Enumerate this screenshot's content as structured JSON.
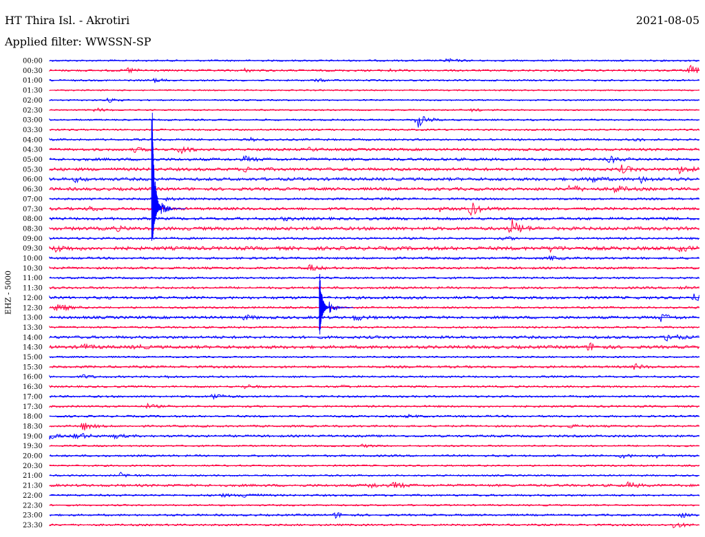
{
  "header": {
    "station": "HT Thira Isl. - Akrotiri",
    "date": "2021-08-05",
    "filter": "Applied filter: WWSSN-SP"
  },
  "chart_data": {
    "type": "line",
    "chart_kind": "helicorder",
    "ylabel": "EHZ - 5000",
    "series_colors": [
      "#0000ff",
      "#ff0040"
    ],
    "rows": [
      {
        "label": "00:00",
        "color": "#0000ff",
        "amp": 1.2,
        "events": [
          {
            "t": 0.61,
            "a": 3
          }
        ]
      },
      {
        "label": "00:30",
        "color": "#ff0040",
        "amp": 1.4,
        "events": [
          {
            "t": 0.12,
            "a": 4
          },
          {
            "t": 0.3,
            "a": 2
          },
          {
            "t": 0.52,
            "a": 2
          },
          {
            "t": 0.985,
            "a": 7
          }
        ]
      },
      {
        "label": "01:00",
        "color": "#0000ff",
        "amp": 1.2,
        "events": [
          {
            "t": 0.16,
            "a": 3
          },
          {
            "t": 0.41,
            "a": 2
          }
        ]
      },
      {
        "label": "01:30",
        "color": "#ff0040",
        "amp": 1.0,
        "events": []
      },
      {
        "label": "02:00",
        "color": "#0000ff",
        "amp": 1.0,
        "events": [
          {
            "t": 0.09,
            "a": 3
          }
        ]
      },
      {
        "label": "02:30",
        "color": "#ff0040",
        "amp": 1.0,
        "events": [
          {
            "t": 0.07,
            "a": 3
          },
          {
            "t": 0.65,
            "a": 2
          }
        ]
      },
      {
        "label": "03:00",
        "color": "#0000ff",
        "amp": 1.2,
        "events": [
          {
            "t": 0.565,
            "a": 12
          }
        ]
      },
      {
        "label": "03:30",
        "color": "#ff0040",
        "amp": 1.2,
        "events": []
      },
      {
        "label": "04:00",
        "color": "#0000ff",
        "amp": 1.4,
        "events": [
          {
            "t": 0.31,
            "a": 2
          },
          {
            "t": 0.9,
            "a": 2
          }
        ]
      },
      {
        "label": "04:30",
        "color": "#ff0040",
        "amp": 1.8,
        "events": [
          {
            "t": 0.13,
            "a": 3
          },
          {
            "t": 0.2,
            "a": 7
          },
          {
            "t": 0.4,
            "a": 2
          }
        ]
      },
      {
        "label": "05:00",
        "color": "#0000ff",
        "amp": 2.0,
        "events": [
          {
            "t": 0.3,
            "a": 4
          },
          {
            "t": 0.86,
            "a": 5
          }
        ]
      },
      {
        "label": "05:30",
        "color": "#ff0040",
        "amp": 2.2,
        "events": [
          {
            "t": 0.3,
            "a": 3
          },
          {
            "t": 0.88,
            "a": 5
          },
          {
            "t": 0.97,
            "a": 6
          }
        ]
      },
      {
        "label": "06:00",
        "color": "#0000ff",
        "amp": 2.2,
        "events": [
          {
            "t": 0.04,
            "a": 3
          },
          {
            "t": 0.83,
            "a": 5
          },
          {
            "t": 0.91,
            "a": 4
          }
        ]
      },
      {
        "label": "06:30",
        "color": "#ff0040",
        "amp": 2.2,
        "events": [
          {
            "t": 0.8,
            "a": 6
          },
          {
            "t": 0.87,
            "a": 5
          }
        ]
      },
      {
        "label": "07:00",
        "color": "#0000ff",
        "amp": 1.5,
        "events": [
          {
            "t": 0.18,
            "a": 2
          },
          {
            "t": 0.5,
            "a": 2
          }
        ]
      },
      {
        "label": "07:30",
        "color": "#ff0040",
        "amp": 2.0,
        "events": [
          {
            "t": 0.06,
            "a": 3
          },
          {
            "t": 0.6,
            "a": 3
          },
          {
            "t": 0.645,
            "a": 13
          }
        ]
      },
      {
        "label": "08:00",
        "color": "#0000ff",
        "amp": 2.0,
        "events": [
          {
            "t": 0.36,
            "a": 2
          }
        ]
      },
      {
        "label": "08:30",
        "color": "#ff0040",
        "amp": 2.4,
        "events": [
          {
            "t": 0.1,
            "a": 3
          },
          {
            "t": 0.71,
            "a": 14
          }
        ]
      },
      {
        "label": "09:00",
        "color": "#0000ff",
        "amp": 1.6,
        "events": [
          {
            "t": 0.7,
            "a": 2
          }
        ]
      },
      {
        "label": "09:30",
        "color": "#ff0040",
        "amp": 2.6,
        "events": [
          {
            "t": 0.01,
            "a": 5
          },
          {
            "t": 0.77,
            "a": 3
          },
          {
            "t": 0.97,
            "a": 4
          }
        ]
      },
      {
        "label": "10:00",
        "color": "#0000ff",
        "amp": 1.6,
        "events": [
          {
            "t": 0.77,
            "a": 3
          }
        ]
      },
      {
        "label": "10:30",
        "color": "#ff0040",
        "amp": 1.6,
        "events": [
          {
            "t": 0.4,
            "a": 5
          }
        ]
      },
      {
        "label": "11:00",
        "color": "#0000ff",
        "amp": 1.4,
        "events": []
      },
      {
        "label": "11:30",
        "color": "#ff0040",
        "amp": 1.6,
        "events": [
          {
            "t": 0.97,
            "a": 3
          }
        ]
      },
      {
        "label": "12:00",
        "color": "#0000ff",
        "amp": 2.0,
        "events": [
          {
            "t": 0.99,
            "a": 5
          }
        ]
      },
      {
        "label": "12:30",
        "color": "#ff0040",
        "amp": 1.4,
        "events": [
          {
            "t": 0.01,
            "a": 9
          }
        ]
      },
      {
        "label": "13:00",
        "color": "#0000ff",
        "amp": 2.0,
        "events": [
          {
            "t": 0.3,
            "a": 3
          },
          {
            "t": 0.47,
            "a": 4
          },
          {
            "t": 0.94,
            "a": 6
          }
        ]
      },
      {
        "label": "13:30",
        "color": "#ff0040",
        "amp": 1.4,
        "events": []
      },
      {
        "label": "14:00",
        "color": "#0000ff",
        "amp": 2.0,
        "events": [
          {
            "t": 0.95,
            "a": 7
          }
        ]
      },
      {
        "label": "14:30",
        "color": "#ff0040",
        "amp": 2.2,
        "events": [
          {
            "t": 0.05,
            "a": 4
          },
          {
            "t": 0.13,
            "a": 3
          },
          {
            "t": 0.83,
            "a": 6
          }
        ]
      },
      {
        "label": "15:00",
        "color": "#0000ff",
        "amp": 1.2,
        "events": []
      },
      {
        "label": "15:30",
        "color": "#ff0040",
        "amp": 1.6,
        "events": [
          {
            "t": 0.9,
            "a": 4
          }
        ]
      },
      {
        "label": "16:00",
        "color": "#0000ff",
        "amp": 1.4,
        "events": [
          {
            "t": 0.05,
            "a": 3
          },
          {
            "t": 0.17,
            "a": 2
          }
        ]
      },
      {
        "label": "16:30",
        "color": "#ff0040",
        "amp": 1.4,
        "events": [
          {
            "t": 0.3,
            "a": 3
          },
          {
            "t": 0.45,
            "a": 2
          }
        ]
      },
      {
        "label": "17:00",
        "color": "#0000ff",
        "amp": 1.4,
        "events": [
          {
            "t": 0.25,
            "a": 5
          }
        ]
      },
      {
        "label": "17:30",
        "color": "#ff0040",
        "amp": 1.4,
        "events": [
          {
            "t": 0.15,
            "a": 3
          }
        ]
      },
      {
        "label": "18:00",
        "color": "#0000ff",
        "amp": 1.4,
        "events": [
          {
            "t": 0.55,
            "a": 2
          }
        ]
      },
      {
        "label": "18:30",
        "color": "#ff0040",
        "amp": 1.4,
        "events": [
          {
            "t": 0.05,
            "a": 7
          },
          {
            "t": 0.8,
            "a": 2
          }
        ]
      },
      {
        "label": "19:00",
        "color": "#0000ff",
        "amp": 1.6,
        "events": [
          {
            "t": 0.0,
            "a": 4
          },
          {
            "t": 0.04,
            "a": 7
          },
          {
            "t": 0.1,
            "a": 3
          }
        ]
      },
      {
        "label": "19:30",
        "color": "#ff0040",
        "amp": 1.2,
        "events": [
          {
            "t": 0.48,
            "a": 2
          }
        ]
      },
      {
        "label": "20:00",
        "color": "#0000ff",
        "amp": 1.4,
        "events": [
          {
            "t": 0.88,
            "a": 3
          },
          {
            "t": 0.93,
            "a": 3
          }
        ]
      },
      {
        "label": "20:30",
        "color": "#ff0040",
        "amp": 1.2,
        "events": []
      },
      {
        "label": "21:00",
        "color": "#0000ff",
        "amp": 1.2,
        "events": [
          {
            "t": 0.11,
            "a": 4
          }
        ]
      },
      {
        "label": "21:30",
        "color": "#ff0040",
        "amp": 1.8,
        "events": [
          {
            "t": 0.49,
            "a": 4
          },
          {
            "t": 0.53,
            "a": 5
          },
          {
            "t": 0.89,
            "a": 4
          }
        ]
      },
      {
        "label": "22:00",
        "color": "#0000ff",
        "amp": 1.4,
        "events": [
          {
            "t": 0.26,
            "a": 3
          },
          {
            "t": 0.3,
            "a": 5
          }
        ]
      },
      {
        "label": "22:30",
        "color": "#ff0040",
        "amp": 1.2,
        "events": []
      },
      {
        "label": "23:00",
        "color": "#0000ff",
        "amp": 1.4,
        "events": [
          {
            "t": 0.44,
            "a": 4
          },
          {
            "t": 0.97,
            "a": 4
          }
        ]
      },
      {
        "label": "23:30",
        "color": "#ff0040",
        "amp": 1.4,
        "events": [
          {
            "t": 0.96,
            "a": 5
          }
        ]
      }
    ],
    "big_events": [
      {
        "name": "quake-0730",
        "row": 15,
        "t": 0.157,
        "up": 195,
        "down": 70,
        "color": "#0000ff"
      },
      {
        "name": "quake-1230",
        "row": 25,
        "t": 0.415,
        "up": 60,
        "down": 50,
        "color": "#0000ff"
      }
    ]
  }
}
